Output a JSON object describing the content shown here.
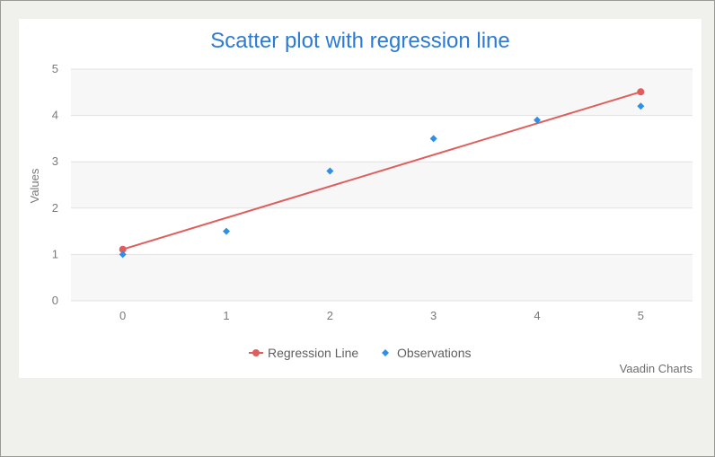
{
  "credits": "Vaadin Charts",
  "colors": {
    "regression": "#e05d5d",
    "observations": "#2f8fe6",
    "title": "#2b7bd6",
    "plot_band": "#f7f7f7",
    "grid": "#e2e2e2"
  },
  "chart_data": {
    "type": "scatter",
    "title": "Scatter plot with regression line",
    "xlabel": "",
    "ylabel": "Values",
    "xlim": [
      -0.5,
      5.5
    ],
    "ylim": [
      0,
      5
    ],
    "x_ticks": [
      "0",
      "1",
      "2",
      "3",
      "4",
      "5"
    ],
    "y_ticks": [
      "0",
      "1",
      "2",
      "3",
      "4",
      "5"
    ],
    "grid": true,
    "legend_position": "bottom-center",
    "series": [
      {
        "name": "Regression Line",
        "kind": "line",
        "marker": "circle",
        "points": [
          [
            0,
            1.11
          ],
          [
            5,
            4.51
          ]
        ]
      },
      {
        "name": "Observations",
        "kind": "scatter",
        "marker": "diamond",
        "points": [
          [
            0,
            1.0
          ],
          [
            1,
            1.5
          ],
          [
            2,
            2.8
          ],
          [
            3,
            3.5
          ],
          [
            4,
            3.9
          ],
          [
            5,
            4.2
          ]
        ]
      }
    ]
  }
}
